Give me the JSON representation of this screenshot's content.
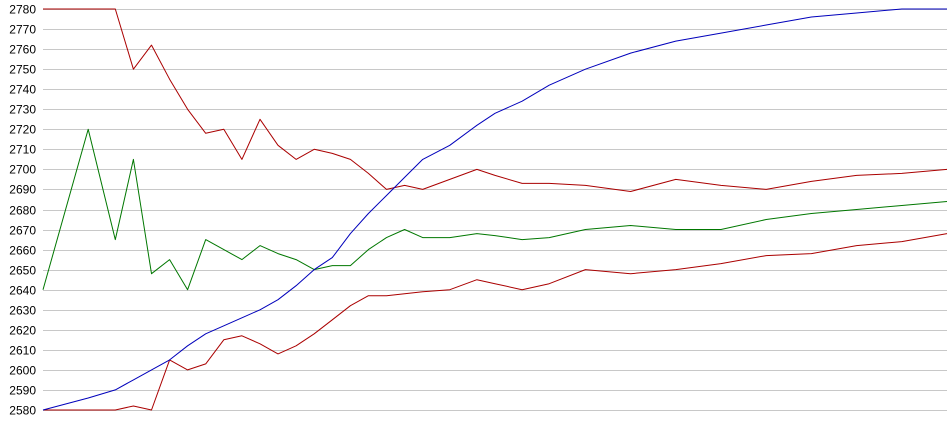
{
  "chart_data": {
    "type": "line",
    "title": "",
    "xlabel": "",
    "ylabel": "",
    "ylim": [
      2580,
      2780
    ],
    "y_ticks": [
      2580,
      2590,
      2600,
      2610,
      2620,
      2630,
      2640,
      2650,
      2660,
      2670,
      2680,
      2690,
      2700,
      2710,
      2720,
      2730,
      2740,
      2750,
      2760,
      2770,
      2780
    ],
    "y_tick_labels": [
      "2580",
      "2590",
      "2600",
      "2610",
      "2620",
      "2630",
      "2640",
      "2650",
      "2660",
      "2670",
      "2680",
      "2690",
      "2700",
      "2710",
      "2720",
      "2730",
      "2740",
      "2750",
      "2760",
      "2770",
      "2780"
    ],
    "x": [
      0,
      5,
      8,
      10,
      12,
      14,
      16,
      18,
      20,
      22,
      24,
      26,
      28,
      30,
      32,
      34,
      36,
      38,
      40,
      42,
      45,
      48,
      50,
      53,
      56,
      60,
      65,
      70,
      75,
      80,
      85,
      90,
      95,
      100
    ],
    "grid": true,
    "legend": "none",
    "series": [
      {
        "color": "#aa0000",
        "values": [
          2780,
          2780,
          2780,
          2750,
          2762,
          2745,
          2730,
          2718,
          2720,
          2705,
          2725,
          2712,
          2705,
          2710,
          2708,
          2705,
          2698,
          2690,
          2692,
          2690,
          2695,
          2700,
          2697,
          2693,
          2693,
          2692,
          2689,
          2695,
          2692,
          2690,
          2694,
          2697,
          2698,
          2700
        ]
      },
      {
        "color": "#007700",
        "values": [
          2640,
          2720,
          2665,
          2705,
          2648,
          2655,
          2640,
          2665,
          2660,
          2655,
          2662,
          2658,
          2655,
          2650,
          2652,
          2652,
          2660,
          2666,
          2670,
          2666,
          2666,
          2668,
          2667,
          2665,
          2666,
          2670,
          2672,
          2670,
          2670,
          2675,
          2678,
          2680,
          2682,
          2684
        ]
      },
      {
        "color": "#aa0000",
        "values": [
          2580,
          2580,
          2580,
          2582,
          2580,
          2605,
          2600,
          2603,
          2615,
          2617,
          2613,
          2608,
          2612,
          2618,
          2625,
          2632,
          2637,
          2637,
          2638,
          2639,
          2640,
          2645,
          2643,
          2640,
          2643,
          2650,
          2648,
          2650,
          2653,
          2657,
          2658,
          2662,
          2664,
          2668
        ]
      },
      {
        "color": "#0000bb",
        "values": [
          2580,
          2586,
          2590,
          2595,
          2600,
          2605,
          2612,
          2618,
          2622,
          2626,
          2630,
          2635,
          2642,
          2650,
          2656,
          2668,
          2678,
          2687,
          2696,
          2705,
          2712,
          2722,
          2728,
          2734,
          2742,
          2750,
          2758,
          2764,
          2768,
          2772,
          2776,
          2778,
          2780,
          2780
        ]
      }
    ]
  }
}
